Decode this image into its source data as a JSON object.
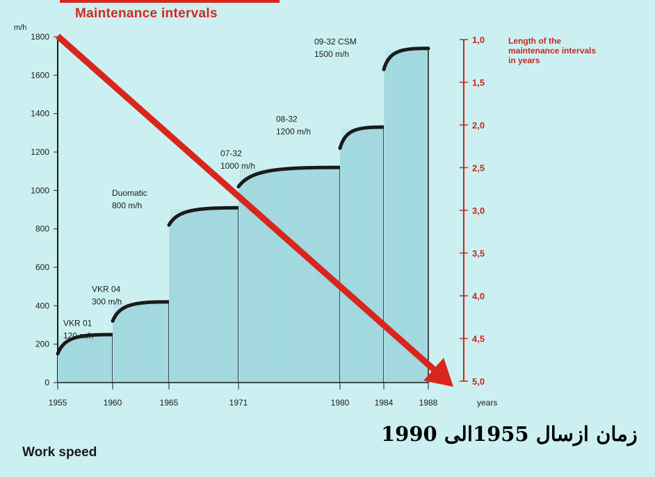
{
  "header": {
    "title": "Maintenance intervals"
  },
  "caption": "زمان ازسال 1955الى 1990",
  "footer": {
    "left_label": "Work speed"
  },
  "colors": {
    "bar_fill": "#a9dde3",
    "bar_stroke": "#1a1a1a",
    "accent_red": "#d8261c",
    "background": "#ccf0f1"
  },
  "chart_data": {
    "type": "area",
    "title": "Maintenance intervals",
    "xlabel": "years",
    "ylabel": "m/h",
    "ylim": [
      0,
      1800
    ],
    "y_ticks": [
      0,
      200,
      400,
      600,
      800,
      1000,
      1200,
      1400,
      1600,
      1800
    ],
    "y_tick_labels": [
      "0",
      "200",
      "400",
      "600",
      "800",
      "1000",
      "1200",
      "1400",
      "1600",
      "1800"
    ],
    "x_ticks": [
      1955,
      1960,
      1965,
      1971,
      1980,
      1984,
      1988
    ],
    "x_tick_labels": [
      "1955",
      "1960",
      "1965",
      "1971",
      "1980",
      "1984",
      "1988"
    ],
    "secondary_axis": {
      "label": "Length of the maintenance intervals in years",
      "range": [
        1.0,
        5.0
      ],
      "ticks": [
        1.0,
        1.5,
        2.0,
        2.5,
        3.0,
        3.5,
        4.0,
        4.5,
        5.0
      ],
      "tick_labels": [
        "1,0",
        "1,5",
        "2,0",
        "2,5",
        "3,0",
        "3,5",
        "4,0",
        "4,5",
        "5,0"
      ]
    },
    "segments": [
      {
        "model": "VKR 01",
        "speed": "120 m/h",
        "x_start": 1955,
        "x_end": 1960,
        "y_start": 150,
        "y_end": 250
      },
      {
        "model": "VKR 04",
        "speed": "300 m/h",
        "x_start": 1960,
        "x_end": 1965,
        "y_start": 320,
        "y_end": 420
      },
      {
        "model": "Duomatic",
        "speed": "800 m/h",
        "x_start": 1965,
        "x_end": 1971,
        "y_start": 820,
        "y_end": 910
      },
      {
        "model": "07-32",
        "speed": "1000 m/h",
        "x_start": 1971,
        "x_end": 1980,
        "y_start": 1020,
        "y_end": 1120
      },
      {
        "model": "08-32",
        "speed": "1200 m/h",
        "x_start": 1980,
        "x_end": 1984,
        "y_start": 1220,
        "y_end": 1330
      },
      {
        "model": "09-32 CSM",
        "speed": "1500 m/h",
        "x_start": 1984,
        "x_end": 1988,
        "y_start": 1630,
        "y_end": 1740
      }
    ],
    "trend": {
      "from": {
        "year": 1955,
        "interval_years": 1.0
      },
      "to": {
        "year": 1989,
        "interval_years": 5.0
      }
    }
  }
}
